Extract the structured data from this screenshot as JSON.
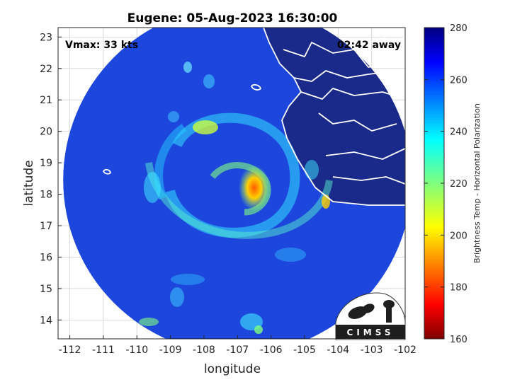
{
  "title": "Eugene: 05-Aug-2023 16:30:00",
  "vmax_label": "Vmax: 33 kts",
  "time_away_label": "02:42 away",
  "map": {
    "xlabel": "longitude",
    "ylabel": "latitude",
    "lon_range": [
      -112.35,
      -102.0
    ],
    "lat_range": [
      13.4,
      23.3
    ],
    "x_ticks": [
      -112,
      -111,
      -110,
      -109,
      -108,
      -107,
      -106,
      -105,
      -104,
      -103,
      -102
    ],
    "y_ticks": [
      14,
      15,
      16,
      17,
      18,
      19,
      20,
      21,
      22,
      23
    ],
    "grid": true,
    "swath_center": [
      -107.0,
      18.45
    ],
    "swath_radius_deg": 5.2,
    "storm_center": [
      -106.5,
      18.2
    ]
  },
  "colorbar": {
    "label": "Brightness Temp - Horizontal Polarization",
    "min": 160,
    "max": 280,
    "ticks": [
      160,
      180,
      200,
      220,
      240,
      260,
      280
    ],
    "colormap": "jet"
  },
  "logo": {
    "text": "CIMSS"
  },
  "colors": {
    "background_tb": "#1c46dc",
    "land": "#1a2a8a",
    "coastline": "#ffffff",
    "warm_core": "#ff6a00"
  }
}
